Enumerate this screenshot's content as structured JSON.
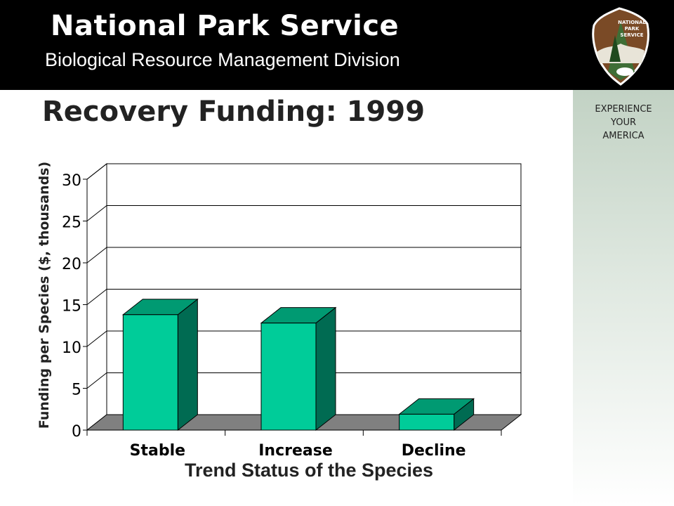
{
  "header": {
    "org_name": "National Park Service",
    "division": "Biological Resource Management Division"
  },
  "logo": {
    "icon": "nps-arrowhead-icon",
    "text": [
      "NATIONAL",
      "PARK",
      "SERVICE"
    ]
  },
  "side_panel": {
    "tagline": [
      "EXPERIENCE",
      "YOUR",
      "AMERICA"
    ]
  },
  "slide": {
    "title": "Recovery Funding: 1999"
  },
  "colors": {
    "bar_front": "#00cc99",
    "bar_top": "#009a72",
    "bar_side": "#006b52",
    "floor": "#808080"
  },
  "chart_data": {
    "type": "bar",
    "title": "",
    "xlabel": "Trend Status of the Species",
    "ylabel": "Funding per Species ($, thousands)",
    "categories": [
      "Stable",
      "Increase",
      "Decline"
    ],
    "values": [
      13.8,
      12.8,
      1.9
    ],
    "ylim": [
      0,
      30
    ],
    "yticks": [
      0,
      5,
      10,
      15,
      20,
      25,
      30
    ],
    "grid": true,
    "legend": "none"
  }
}
